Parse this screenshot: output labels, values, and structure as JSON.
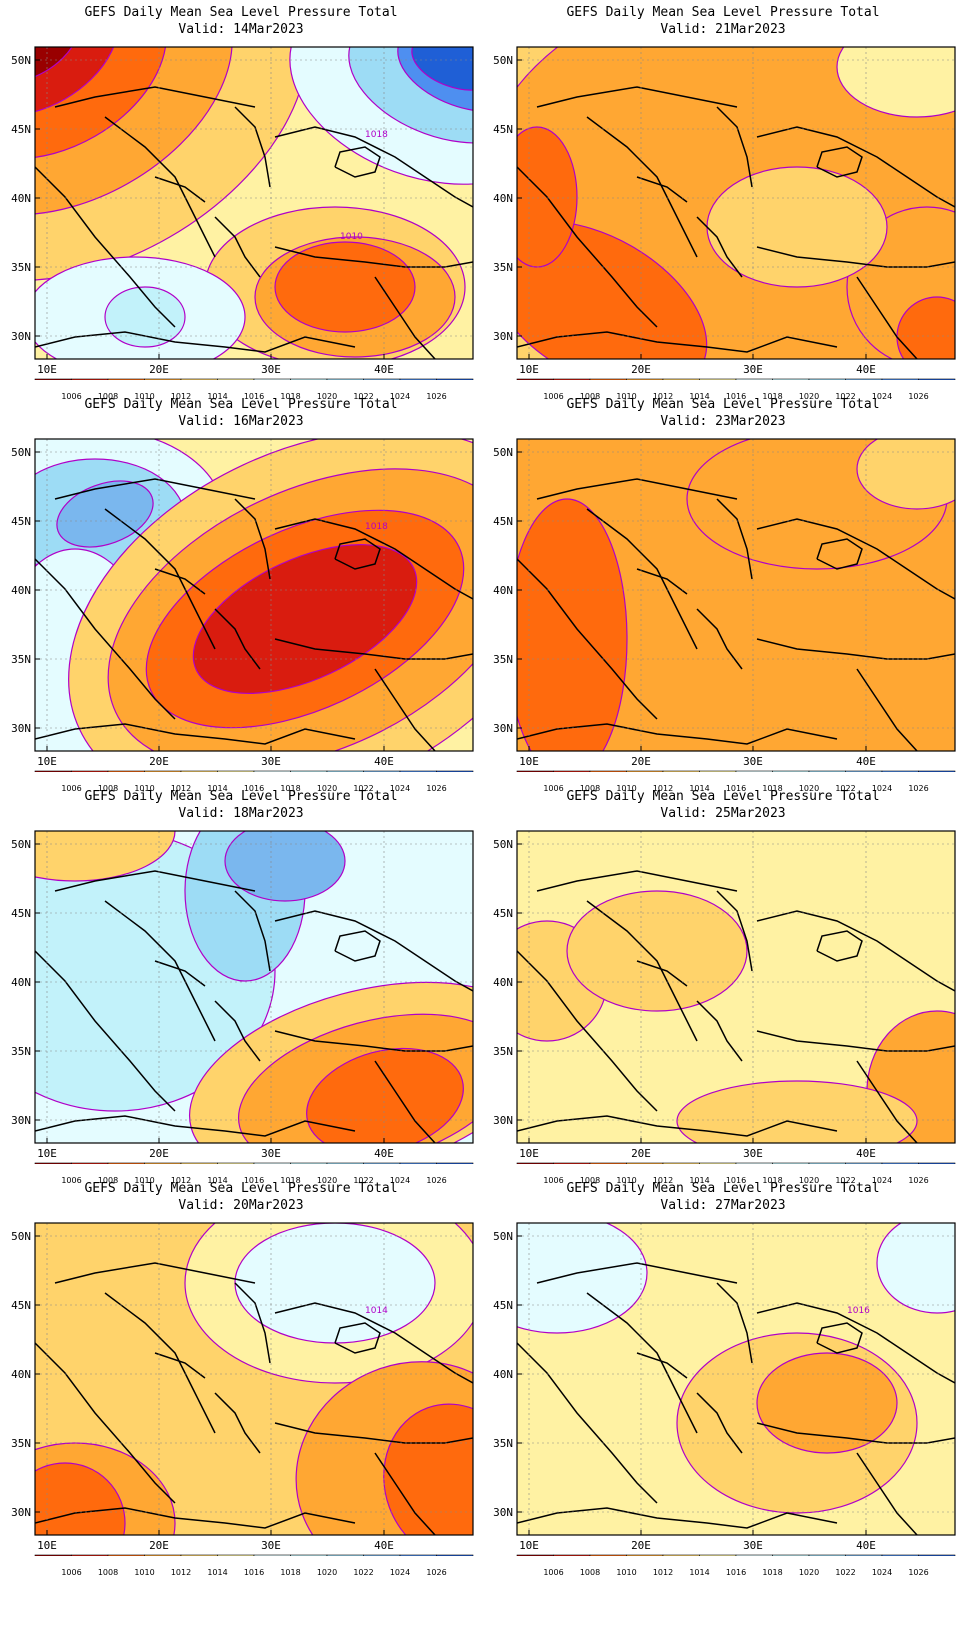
{
  "colorbar": {
    "colors": [
      "#990000",
      "#d91c0f",
      "#ff6a0d",
      "#ffa733",
      "#ffd36b",
      "#fff2a3",
      "#e4fcff",
      "#c2f2fa",
      "#9ddcf5",
      "#7ab7ee",
      "#4e8ff0",
      "#1f5fd6"
    ],
    "labels": [
      "1006",
      "1008",
      "1010",
      "1012",
      "1014",
      "1016",
      "1018",
      "1020",
      "1022",
      "1024",
      "1026"
    ]
  },
  "axes": {
    "lat_ticks": [
      "50N",
      "45N",
      "40N",
      "35N",
      "30N"
    ],
    "lon_ticks": [
      "10E",
      "20E",
      "30E",
      "40E"
    ]
  },
  "panels": [
    {
      "title": "GEFS Daily Mean Sea Level Pressure Total",
      "valid": "Valid: 14Mar2023",
      "contour_labels": [
        "1018",
        "1010"
      ]
    },
    {
      "title": "GEFS Daily Mean Sea Level Pressure Total",
      "valid": "Valid: 21Mar2023",
      "contour_labels": []
    },
    {
      "title": "GEFS Daily Mean Sea Level Pressure Total",
      "valid": "Valid: 16Mar2023",
      "contour_labels": [
        "1018"
      ]
    },
    {
      "title": "GEFS Daily Mean Sea Level Pressure Total",
      "valid": "Valid: 23Mar2023",
      "contour_labels": []
    },
    {
      "title": "GEFS Daily Mean Sea Level Pressure Total",
      "valid": "Valid: 18Mar2023",
      "contour_labels": []
    },
    {
      "title": "GEFS Daily Mean Sea Level Pressure Total",
      "valid": "Valid: 25Mar2023",
      "contour_labels": []
    },
    {
      "title": "GEFS Daily Mean Sea Level Pressure Total",
      "valid": "Valid: 20Mar2023",
      "contour_labels": [
        "1014"
      ]
    },
    {
      "title": "GEFS Daily Mean Sea Level Pressure Total",
      "valid": "Valid: 27Mar2023",
      "contour_labels": [
        "1016"
      ]
    }
  ]
}
